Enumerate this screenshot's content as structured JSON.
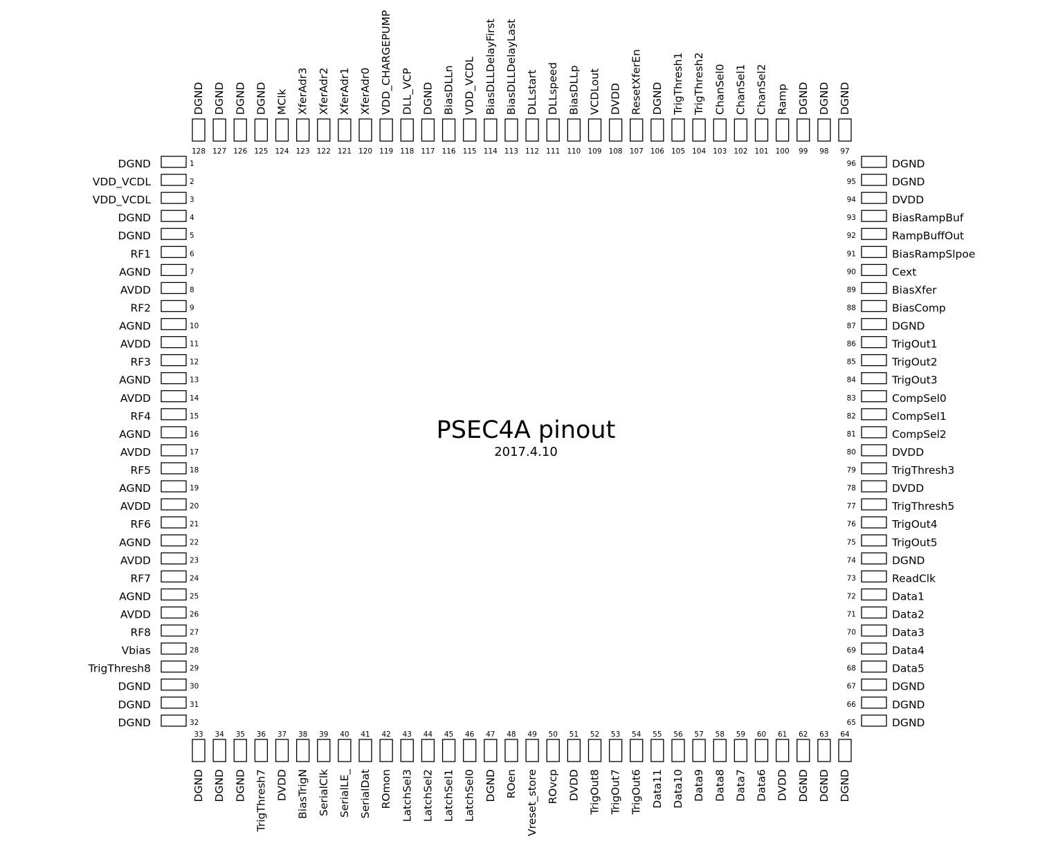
{
  "title": "PSEC4A pinout",
  "date": "2017.4.10",
  "pins": {
    "left": [
      {
        "num": "1",
        "name": "DGND"
      },
      {
        "num": "2",
        "name": "VDD_VCDL"
      },
      {
        "num": "3",
        "name": "VDD_VCDL"
      },
      {
        "num": "4",
        "name": "DGND"
      },
      {
        "num": "5",
        "name": "DGND"
      },
      {
        "num": "6",
        "name": "RF1"
      },
      {
        "num": "7",
        "name": "AGND"
      },
      {
        "num": "8",
        "name": "AVDD"
      },
      {
        "num": "9",
        "name": "RF2"
      },
      {
        "num": "10",
        "name": "AGND"
      },
      {
        "num": "11",
        "name": "AVDD"
      },
      {
        "num": "12",
        "name": "RF3"
      },
      {
        "num": "13",
        "name": "AGND"
      },
      {
        "num": "14",
        "name": "AVDD"
      },
      {
        "num": "15",
        "name": "RF4"
      },
      {
        "num": "16",
        "name": "AGND"
      },
      {
        "num": "17",
        "name": "AVDD"
      },
      {
        "num": "18",
        "name": "RF5"
      },
      {
        "num": "19",
        "name": "AGND"
      },
      {
        "num": "20",
        "name": "AVDD"
      },
      {
        "num": "21",
        "name": "RF6"
      },
      {
        "num": "22",
        "name": "AGND"
      },
      {
        "num": "23",
        "name": "AVDD"
      },
      {
        "num": "24",
        "name": "RF7"
      },
      {
        "num": "25",
        "name": "AGND"
      },
      {
        "num": "26",
        "name": "AVDD"
      },
      {
        "num": "27",
        "name": "RF8"
      },
      {
        "num": "28",
        "name": "Vbias"
      },
      {
        "num": "29",
        "name": "TrigThresh8"
      },
      {
        "num": "30",
        "name": "DGND"
      },
      {
        "num": "31",
        "name": "DGND"
      },
      {
        "num": "32",
        "name": "DGND"
      }
    ],
    "bottom": [
      {
        "num": "33",
        "name": "DGND"
      },
      {
        "num": "34",
        "name": "DGND"
      },
      {
        "num": "35",
        "name": "DGND"
      },
      {
        "num": "36",
        "name": "TrigThresh7"
      },
      {
        "num": "37",
        "name": "DVDD"
      },
      {
        "num": "38",
        "name": "BiasTrigN"
      },
      {
        "num": "39",
        "name": "SerialClk"
      },
      {
        "num": "40",
        "name": "SerialLE_"
      },
      {
        "num": "41",
        "name": "SerialDat"
      },
      {
        "num": "42",
        "name": "ROmon"
      },
      {
        "num": "43",
        "name": "LatchSel3"
      },
      {
        "num": "44",
        "name": "LatchSel2"
      },
      {
        "num": "45",
        "name": "LatchSel1"
      },
      {
        "num": "46",
        "name": "LatchSel0"
      },
      {
        "num": "47",
        "name": "DGND"
      },
      {
        "num": "48",
        "name": "ROen"
      },
      {
        "num": "49",
        "name": "Vreset_store"
      },
      {
        "num": "50",
        "name": "ROvcp"
      },
      {
        "num": "51",
        "name": "DVDD"
      },
      {
        "num": "52",
        "name": "TrigOut8"
      },
      {
        "num": "53",
        "name": "TrigOut7"
      },
      {
        "num": "54",
        "name": "TrigOut6"
      },
      {
        "num": "55",
        "name": "Data11"
      },
      {
        "num": "56",
        "name": "Data10"
      },
      {
        "num": "57",
        "name": "Data9"
      },
      {
        "num": "58",
        "name": "Data8"
      },
      {
        "num": "59",
        "name": "Data7"
      },
      {
        "num": "60",
        "name": "Data6"
      },
      {
        "num": "61",
        "name": "DVDD"
      },
      {
        "num": "62",
        "name": "DGND"
      },
      {
        "num": "63",
        "name": "DGND"
      },
      {
        "num": "64",
        "name": "DGND"
      }
    ],
    "right": [
      {
        "num": "65",
        "name": "DGND"
      },
      {
        "num": "66",
        "name": "DGND"
      },
      {
        "num": "67",
        "name": "DGND"
      },
      {
        "num": "68",
        "name": "Data5"
      },
      {
        "num": "69",
        "name": "Data4"
      },
      {
        "num": "70",
        "name": "Data3"
      },
      {
        "num": "71",
        "name": "Data2"
      },
      {
        "num": "72",
        "name": "Data1"
      },
      {
        "num": "73",
        "name": "ReadClk"
      },
      {
        "num": "74",
        "name": "DGND"
      },
      {
        "num": "75",
        "name": "TrigOut5"
      },
      {
        "num": "76",
        "name": "TrigOut4"
      },
      {
        "num": "77",
        "name": "TrigThresh5"
      },
      {
        "num": "78",
        "name": "DVDD"
      },
      {
        "num": "79",
        "name": "TrigThresh3"
      },
      {
        "num": "80",
        "name": "DVDD"
      },
      {
        "num": "81",
        "name": "CompSel2"
      },
      {
        "num": "82",
        "name": "CompSel1"
      },
      {
        "num": "83",
        "name": "CompSel0"
      },
      {
        "num": "84",
        "name": "TrigOut3"
      },
      {
        "num": "85",
        "name": "TrigOut2"
      },
      {
        "num": "86",
        "name": "TrigOut1"
      },
      {
        "num": "87",
        "name": "DGND"
      },
      {
        "num": "88",
        "name": "BiasComp"
      },
      {
        "num": "89",
        "name": "BiasXfer"
      },
      {
        "num": "90",
        "name": "Cext"
      },
      {
        "num": "91",
        "name": "BiasRampSlpoe"
      },
      {
        "num": "92",
        "name": "RampBuffOut"
      },
      {
        "num": "93",
        "name": "BiasRampBuf"
      },
      {
        "num": "94",
        "name": "DVDD"
      },
      {
        "num": "95",
        "name": "DGND"
      },
      {
        "num": "96",
        "name": "DGND"
      }
    ],
    "top": [
      {
        "num": "97",
        "name": "DGND"
      },
      {
        "num": "98",
        "name": "DGND"
      },
      {
        "num": "99",
        "name": "DGND"
      },
      {
        "num": "100",
        "name": "Ramp"
      },
      {
        "num": "101",
        "name": "ChanSel2"
      },
      {
        "num": "102",
        "name": "ChanSel1"
      },
      {
        "num": "103",
        "name": "ChanSel0"
      },
      {
        "num": "104",
        "name": "TrigThresh2"
      },
      {
        "num": "105",
        "name": "TrigThresh1"
      },
      {
        "num": "106",
        "name": "DGND"
      },
      {
        "num": "107",
        "name": "ResetXferEn"
      },
      {
        "num": "108",
        "name": "DVDD"
      },
      {
        "num": "109",
        "name": "VCDLout"
      },
      {
        "num": "110",
        "name": "BiasDLLp"
      },
      {
        "num": "111",
        "name": "DLLspeed"
      },
      {
        "num": "112",
        "name": "DLLstart"
      },
      {
        "num": "113",
        "name": "BiasDLLDelayLast"
      },
      {
        "num": "114",
        "name": "BiasDLLDelayFirst"
      },
      {
        "num": "115",
        "name": "VDD_VCDL"
      },
      {
        "num": "116",
        "name": "BiasDLLn"
      },
      {
        "num": "117",
        "name": "DGND"
      },
      {
        "num": "118",
        "name": "DLL_VCP"
      },
      {
        "num": "119",
        "name": "VDD_CHARGEPUMP"
      },
      {
        "num": "120",
        "name": "XferAdr0"
      },
      {
        "num": "121",
        "name": "XferAdr1"
      },
      {
        "num": "122",
        "name": "XferAdr2"
      },
      {
        "num": "123",
        "name": "XferAdr3"
      },
      {
        "num": "124",
        "name": "MClk"
      },
      {
        "num": "125",
        "name": "DGND"
      },
      {
        "num": "126",
        "name": "DGND"
      },
      {
        "num": "127",
        "name": "DGND"
      },
      {
        "num": "128",
        "name": "DGND"
      }
    ]
  }
}
